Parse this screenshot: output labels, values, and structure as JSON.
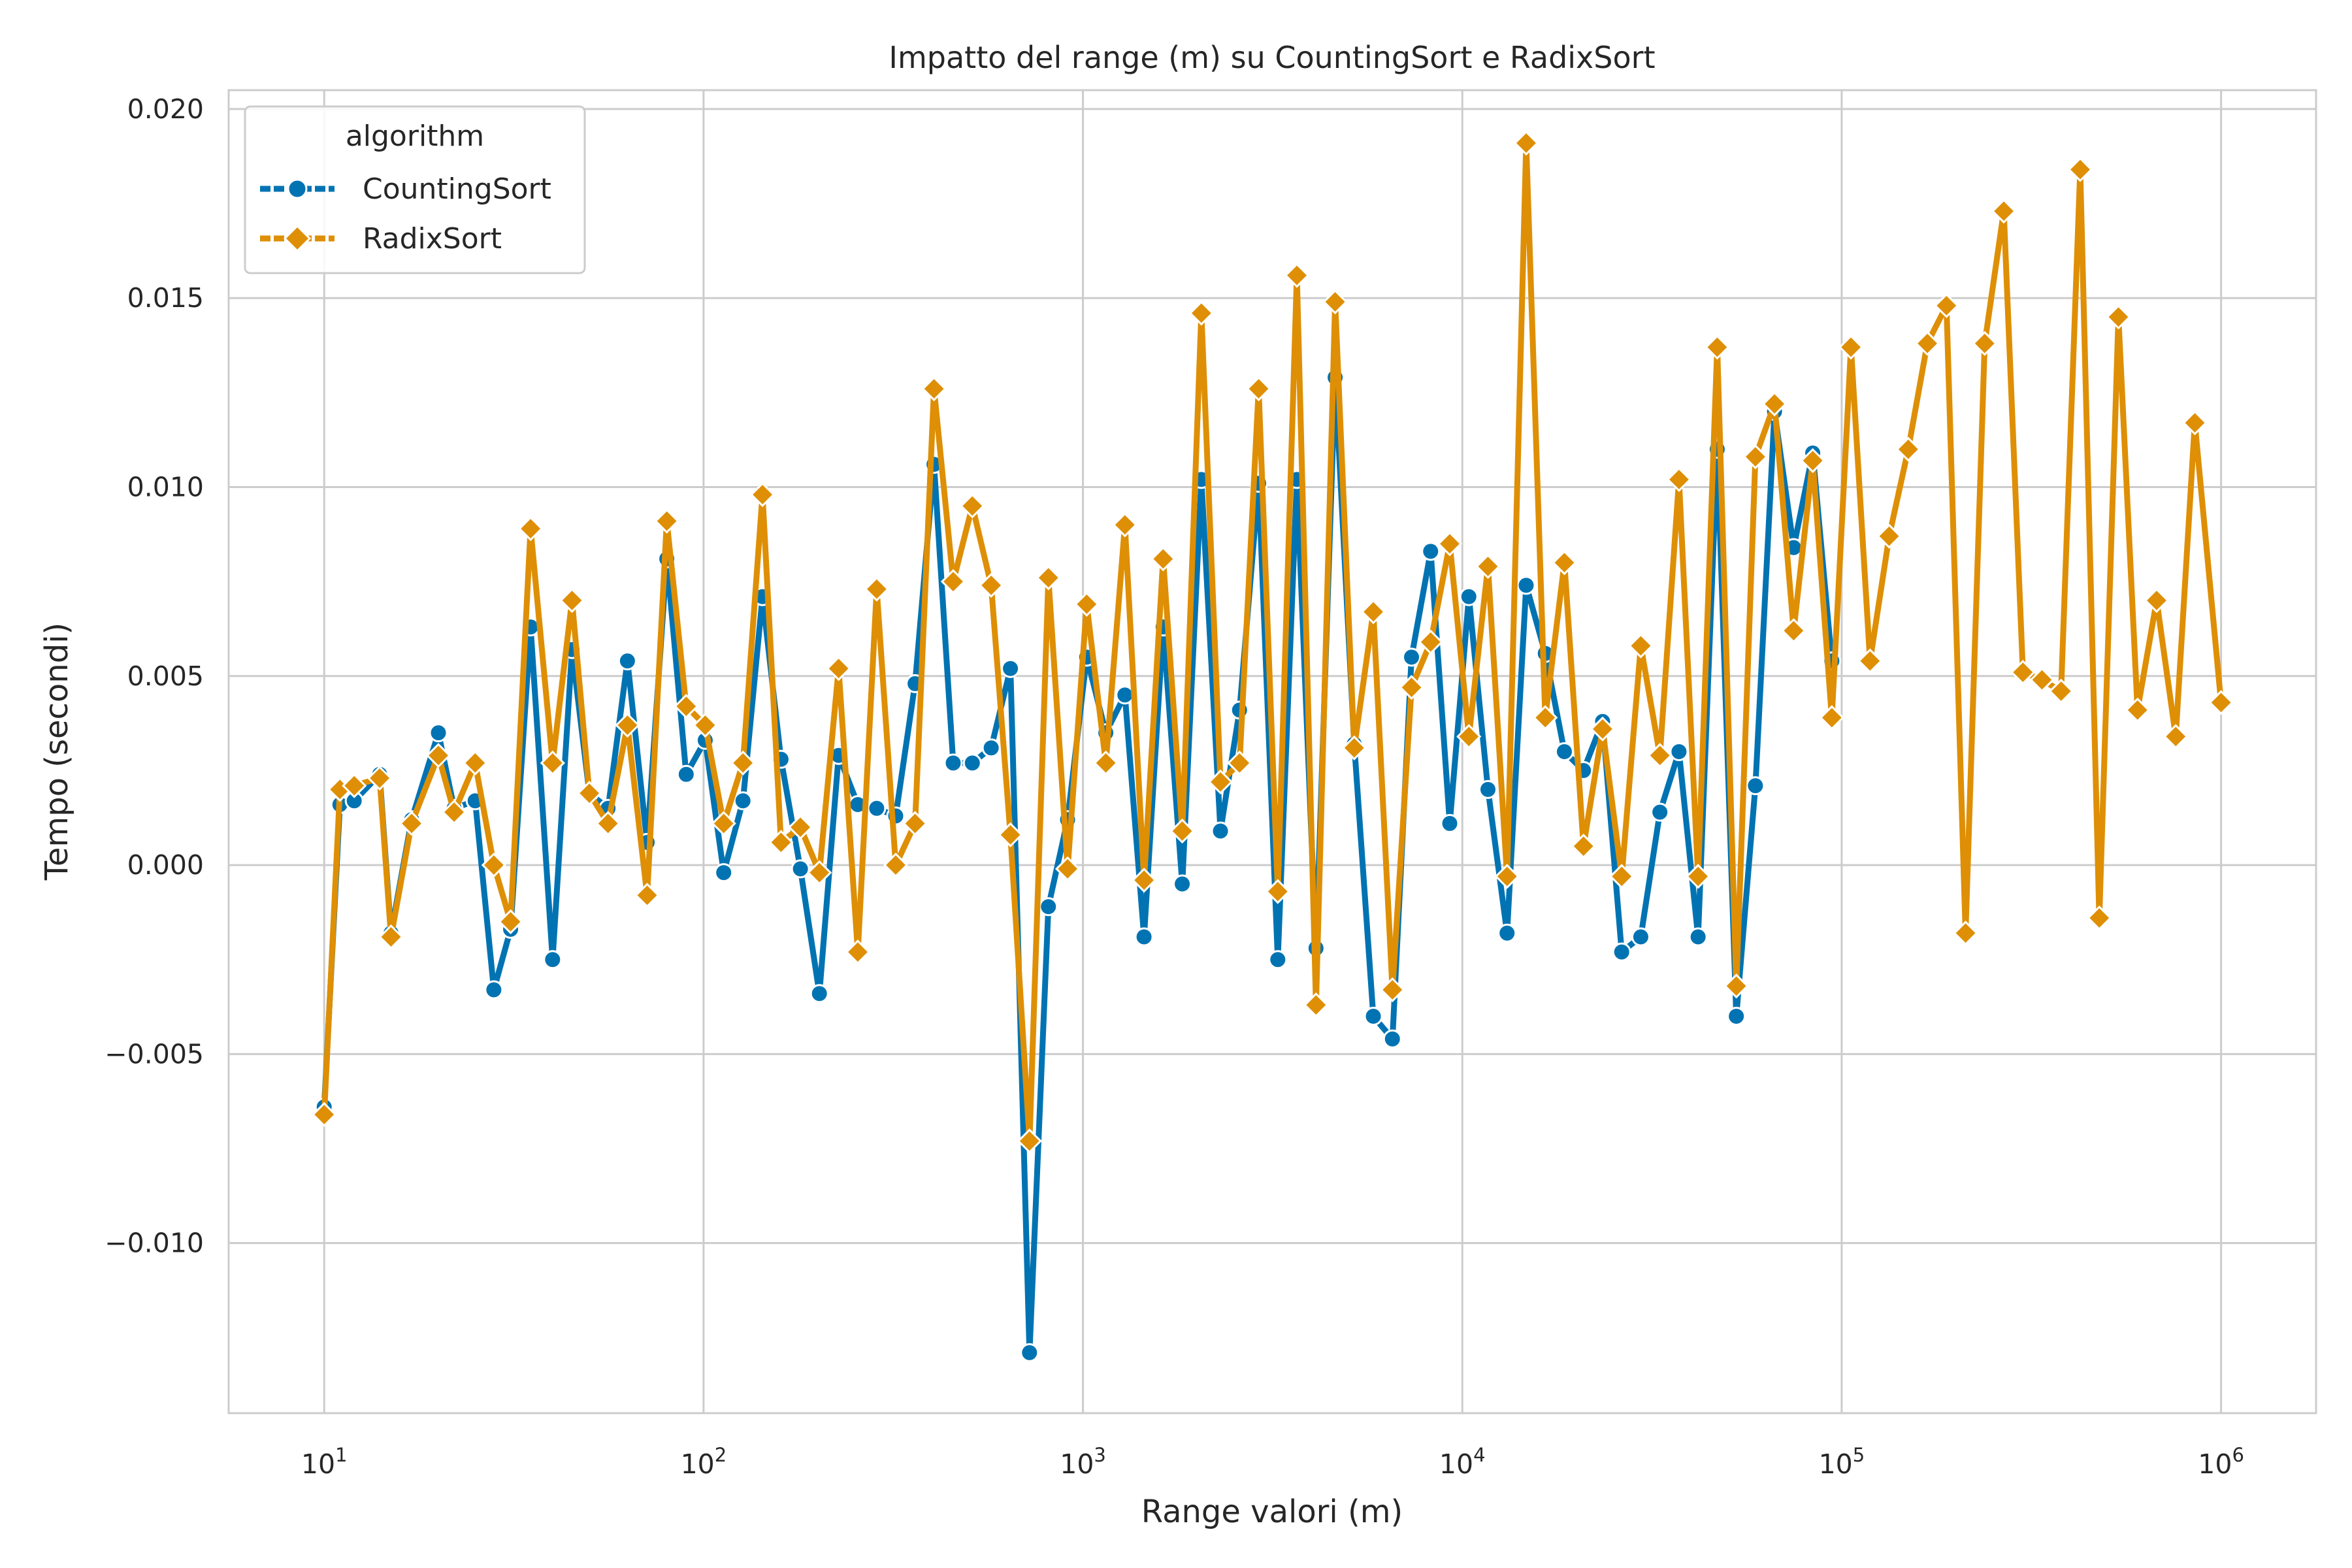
{
  "chart_data": {
    "type": "line",
    "title": "Impatto del range (m) su CountingSort e RadixSort",
    "xlabel": "Range valori (m)",
    "ylabel": "Tempo (secondi)",
    "xscale": "log",
    "xlim": [
      5.6,
      1780000
    ],
    "ylim": [
      -0.0145,
      0.0205
    ],
    "grid": true,
    "legend_position": "top-left",
    "legend_title": "algorithm",
    "x_ticks": [
      {
        "value": 10,
        "base": "10",
        "exp": "1"
      },
      {
        "value": 100,
        "base": "10",
        "exp": "2"
      },
      {
        "value": 1000,
        "base": "10",
        "exp": "3"
      },
      {
        "value": 10000,
        "base": "10",
        "exp": "4"
      },
      {
        "value": 100000,
        "base": "10",
        "exp": "5"
      },
      {
        "value": 1000000,
        "base": "10",
        "exp": "6"
      }
    ],
    "y_ticks": [
      {
        "value": -0.01,
        "label": "−0.010"
      },
      {
        "value": -0.005,
        "label": "−0.005"
      },
      {
        "value": 0.0,
        "label": "0.000"
      },
      {
        "value": 0.005,
        "label": "0.005"
      },
      {
        "value": 0.01,
        "label": "0.010"
      },
      {
        "value": 0.015,
        "label": "0.015"
      },
      {
        "value": 0.02,
        "label": "0.020"
      }
    ],
    "series": [
      {
        "name": "CountingSort",
        "color": "#0173b2",
        "marker": "circle",
        "points": [
          [
            10,
            -0.0064
          ],
          [
            11,
            0.0016
          ],
          [
            12,
            0.0017
          ],
          [
            14,
            0.0024
          ],
          [
            15,
            -0.0018
          ],
          [
            17,
            0.0012
          ],
          [
            20,
            0.0035
          ],
          [
            22,
            0.0015
          ],
          [
            25,
            0.0017
          ],
          [
            28,
            -0.0033
          ],
          [
            31,
            -0.0017
          ],
          [
            35,
            0.0063
          ],
          [
            40,
            -0.0025
          ],
          [
            45,
            0.0057
          ],
          [
            50,
            0.0019
          ],
          [
            56,
            0.0015
          ],
          [
            63,
            0.0054
          ],
          [
            71,
            0.0006
          ],
          [
            80,
            0.0081
          ],
          [
            90,
            0.0024
          ],
          [
            101,
            0.0033
          ],
          [
            113,
            -0.0002
          ],
          [
            127,
            0.0017
          ],
          [
            143,
            0.0071
          ],
          [
            160,
            0.0028
          ],
          [
            180,
            -0.0001
          ],
          [
            202,
            -0.0034
          ],
          [
            227,
            0.0029
          ],
          [
            255,
            0.0016
          ],
          [
            286,
            0.0015
          ],
          [
            321,
            0.0013
          ],
          [
            361,
            0.0048
          ],
          [
            405,
            0.0106
          ],
          [
            455,
            0.0027
          ],
          [
            511,
            0.0027
          ],
          [
            573,
            0.0031
          ],
          [
            644,
            0.0052
          ],
          [
            723,
            -0.0129
          ],
          [
            811,
            -0.0011
          ],
          [
            911,
            0.0012
          ],
          [
            1023,
            0.0055
          ],
          [
            1149,
            0.0035
          ],
          [
            1290,
            0.0045
          ],
          [
            1449,
            -0.0019
          ],
          [
            1627,
            0.0063
          ],
          [
            1827,
            -0.0005
          ],
          [
            2052,
            0.0102
          ],
          [
            2304,
            0.0009
          ],
          [
            2587,
            0.0041
          ],
          [
            2905,
            0.0101
          ],
          [
            3263,
            -0.0025
          ],
          [
            3664,
            0.0102
          ],
          [
            4115,
            -0.0022
          ],
          [
            4621,
            0.0129
          ],
          [
            5189,
            0.0032
          ],
          [
            5827,
            -0.004
          ],
          [
            6543,
            -0.0046
          ],
          [
            7348,
            0.0055
          ],
          [
            8251,
            0.0083
          ],
          [
            9266,
            0.0011
          ],
          [
            10405,
            0.0071
          ],
          [
            11684,
            0.002
          ],
          [
            13121,
            -0.0018
          ],
          [
            14734,
            0.0074
          ],
          [
            16545,
            0.0056
          ],
          [
            18580,
            0.003
          ],
          [
            20864,
            0.0025
          ],
          [
            23429,
            0.0038
          ],
          [
            26309,
            -0.0023
          ],
          [
            29543,
            -0.0019
          ],
          [
            33175,
            0.0014
          ],
          [
            37254,
            0.003
          ],
          [
            41834,
            -0.0019
          ],
          [
            46977,
            0.011
          ],
          [
            52753,
            -0.004
          ],
          [
            59238,
            0.0021
          ],
          [
            66521,
            0.012
          ],
          [
            74699,
            0.0084
          ],
          [
            83883,
            0.0109
          ],
          [
            94195,
            0.0054
          ]
        ]
      },
      {
        "name": "RadixSort",
        "color": "#de8f05",
        "marker": "diamond",
        "points": [
          [
            10,
            -0.0066
          ],
          [
            11,
            0.002
          ],
          [
            12,
            0.0021
          ],
          [
            14,
            0.0023
          ],
          [
            15,
            -0.0019
          ],
          [
            17,
            0.0011
          ],
          [
            20,
            0.0029
          ],
          [
            22,
            0.0014
          ],
          [
            25,
            0.0027
          ],
          [
            28,
            0.0
          ],
          [
            31,
            -0.0015
          ],
          [
            35,
            0.0089
          ],
          [
            40,
            0.0027
          ],
          [
            45,
            0.007
          ],
          [
            50,
            0.0019
          ],
          [
            56,
            0.0011
          ],
          [
            63,
            0.0037
          ],
          [
            71,
            -0.0008
          ],
          [
            80,
            0.0091
          ],
          [
            90,
            0.0042
          ],
          [
            101,
            0.0037
          ],
          [
            113,
            0.0011
          ],
          [
            127,
            0.0027
          ],
          [
            143,
            0.0098
          ],
          [
            160,
            0.0006
          ],
          [
            180,
            0.001
          ],
          [
            202,
            -0.0002
          ],
          [
            227,
            0.0052
          ],
          [
            255,
            -0.0023
          ],
          [
            286,
            0.0073
          ],
          [
            321,
            0.0
          ],
          [
            361,
            0.0011
          ],
          [
            405,
            0.0126
          ],
          [
            455,
            0.0075
          ],
          [
            511,
            0.0095
          ],
          [
            573,
            0.0074
          ],
          [
            644,
            0.0008
          ],
          [
            723,
            -0.0073
          ],
          [
            811,
            0.0076
          ],
          [
            911,
            -0.0001
          ],
          [
            1023,
            0.0069
          ],
          [
            1149,
            0.0027
          ],
          [
            1290,
            0.009
          ],
          [
            1449,
            -0.0004
          ],
          [
            1627,
            0.0081
          ],
          [
            1827,
            0.0009
          ],
          [
            2052,
            0.0146
          ],
          [
            2304,
            0.0022
          ],
          [
            2587,
            0.0027
          ],
          [
            2905,
            0.0126
          ],
          [
            3263,
            -0.0007
          ],
          [
            3664,
            0.0156
          ],
          [
            4115,
            -0.0037
          ],
          [
            4621,
            0.0149
          ],
          [
            5189,
            0.0031
          ],
          [
            5827,
            0.0067
          ],
          [
            6543,
            -0.0033
          ],
          [
            7348,
            0.0047
          ],
          [
            8251,
            0.0059
          ],
          [
            9266,
            0.0085
          ],
          [
            10405,
            0.0034
          ],
          [
            11684,
            0.0079
          ],
          [
            13121,
            -0.0003
          ],
          [
            14734,
            0.0191
          ],
          [
            16545,
            0.0039
          ],
          [
            18580,
            0.008
          ],
          [
            20864,
            0.0005
          ],
          [
            23429,
            0.0036
          ],
          [
            26309,
            -0.0003
          ],
          [
            29543,
            0.0058
          ],
          [
            33175,
            0.0029
          ],
          [
            37254,
            0.0102
          ],
          [
            41834,
            -0.0003
          ],
          [
            46977,
            0.0137
          ],
          [
            52753,
            -0.0032
          ],
          [
            59238,
            0.0108
          ],
          [
            66521,
            0.0122
          ],
          [
            74699,
            0.0062
          ],
          [
            83883,
            0.0107
          ],
          [
            94195,
            0.0039
          ],
          [
            105776,
            0.0137
          ],
          [
            118781,
            0.0054
          ],
          [
            133385,
            0.0087
          ],
          [
            149786,
            0.011
          ],
          [
            168202,
            0.0138
          ],
          [
            188883,
            0.0148
          ],
          [
            212106,
            -0.0018
          ],
          [
            238185,
            0.0138
          ],
          [
            267470,
            0.0173
          ],
          [
            300355,
            0.0051
          ],
          [
            337283,
            0.0049
          ],
          [
            378751,
            0.0046
          ],
          [
            425318,
            0.0184
          ],
          [
            477612,
            -0.0014
          ],
          [
            536333,
            0.0145
          ],
          [
            602275,
            0.0041
          ],
          [
            676325,
            0.007
          ],
          [
            759478,
            0.0034
          ],
          [
            852855,
            0.0117
          ],
          [
            1000000,
            0.0043
          ]
        ]
      }
    ]
  }
}
